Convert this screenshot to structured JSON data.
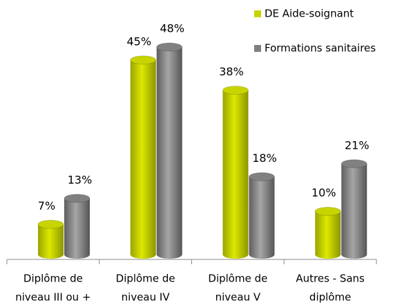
{
  "chart_data": {
    "type": "bar",
    "categories": [
      [
        "Diplôme de",
        "niveau III ou +"
      ],
      [
        "Diplôme de",
        "niveau IV"
      ],
      [
        "Diplôme de",
        "niveau V"
      ],
      [
        "Autres - Sans",
        "diplôme"
      ]
    ],
    "series": [
      {
        "name": "DE Aide-soignant",
        "color": "#c8d400",
        "values": [
          7,
          45,
          38,
          10
        ],
        "value_labels": [
          "7%",
          "45%",
          "38%",
          "10%"
        ]
      },
      {
        "name": "Formations sanitaires",
        "color": "#808080",
        "values": [
          13,
          48,
          18,
          21
        ],
        "value_labels": [
          "13%",
          "48%",
          "18%",
          "21%"
        ]
      }
    ],
    "legend": "top-right"
  }
}
